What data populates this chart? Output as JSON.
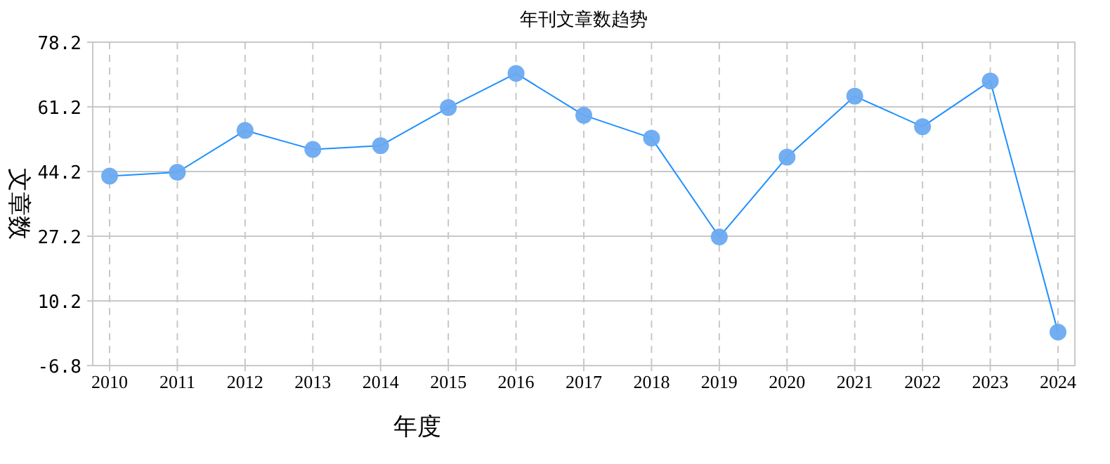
{
  "chart_data": {
    "type": "line",
    "title": "年刊文章数趋势",
    "xlabel": "年度",
    "ylabel": "文章数",
    "categories": [
      "2010",
      "2011",
      "2012",
      "2013",
      "2014",
      "2015",
      "2016",
      "2017",
      "2018",
      "2019",
      "2020",
      "2021",
      "2022",
      "2023",
      "2024"
    ],
    "series": [
      {
        "color": "#1e90ff",
        "values": [
          43,
          44,
          55,
          50,
          51,
          61,
          70,
          59,
          53,
          27,
          48,
          64,
          56,
          68,
          2
        ]
      }
    ],
    "marker": "circle",
    "grid": true,
    "ylim": [
      -6.8,
      78.2
    ],
    "yticks": [
      -6.8,
      10.2,
      27.2,
      44.2,
      61.2,
      78.2
    ]
  }
}
